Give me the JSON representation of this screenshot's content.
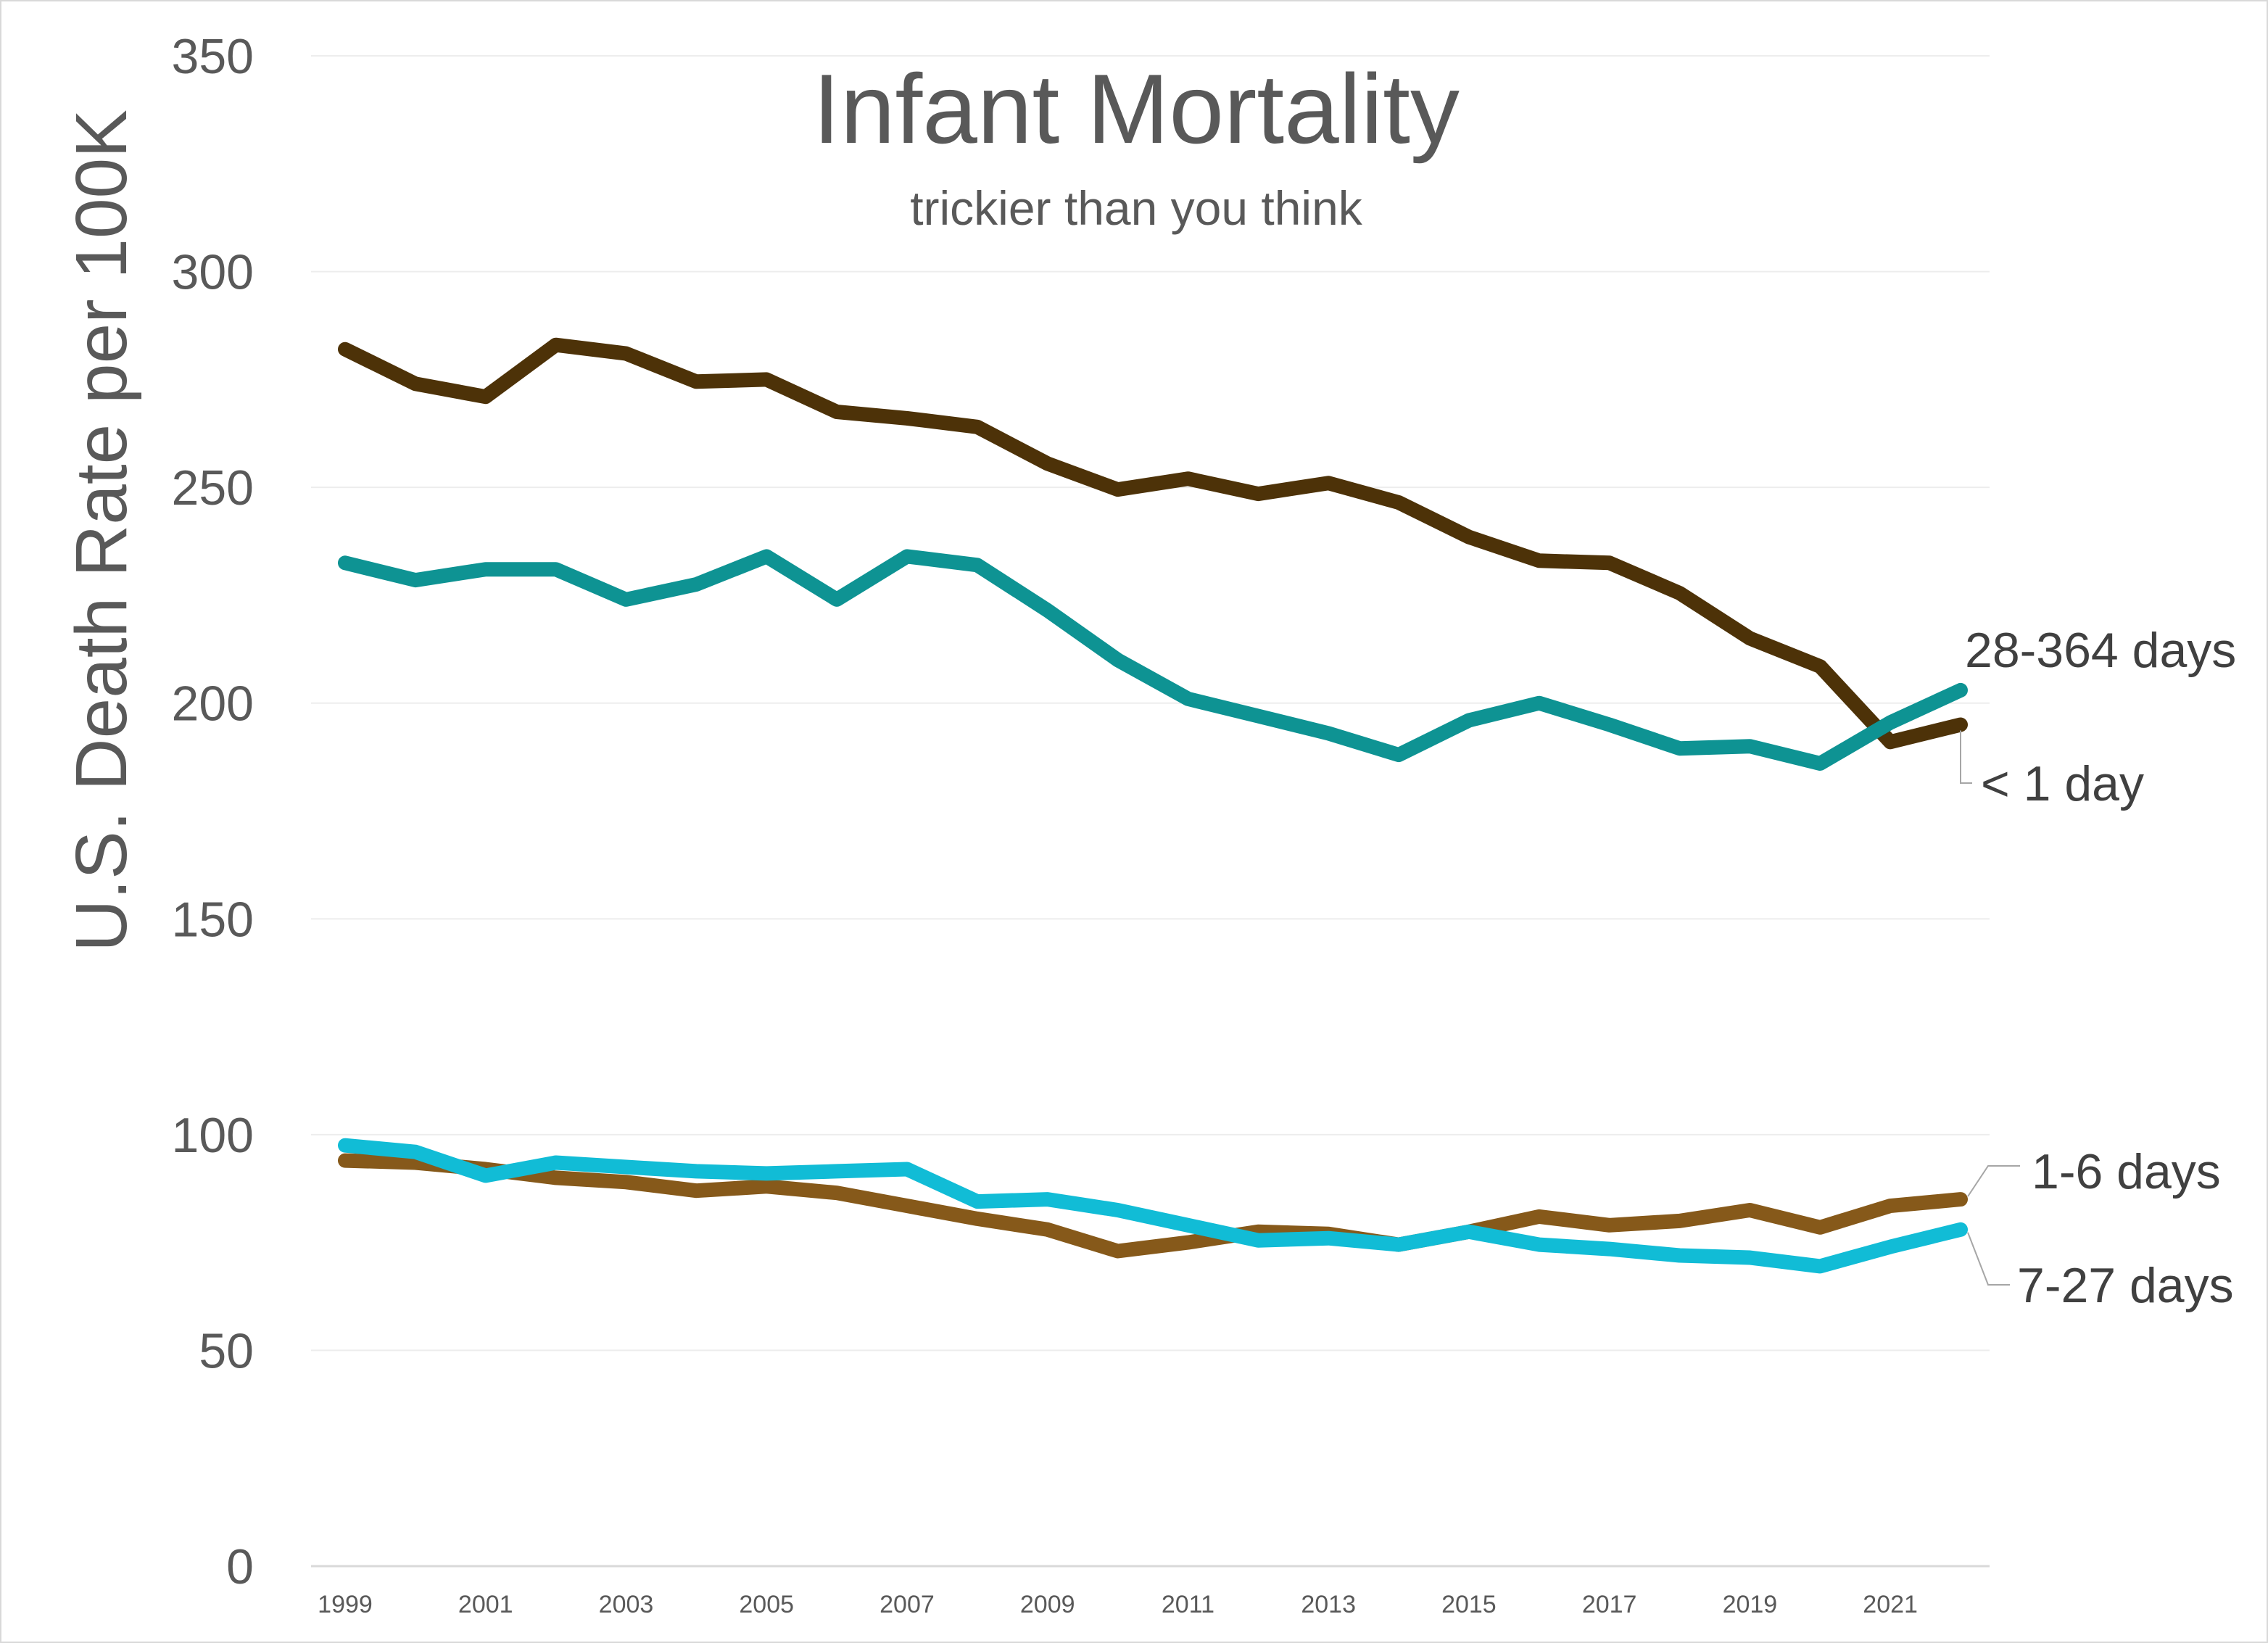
{
  "chart_data": {
    "type": "line",
    "title": "Infant Mortality",
    "subtitle": "trickier than you think",
    "ylabel": "U.S. Death Rate per 100K",
    "xlabel": "",
    "ylim": [
      0,
      350
    ],
    "yticks": [
      0,
      50,
      100,
      150,
      200,
      250,
      300,
      350
    ],
    "xticks": [
      1999,
      2001,
      2003,
      2005,
      2007,
      2009,
      2011,
      2013,
      2015,
      2017,
      2019,
      2021
    ],
    "grid": true,
    "legend": "direct labels at line ends",
    "x": [
      1999,
      2000,
      2001,
      2002,
      2003,
      2004,
      2005,
      2006,
      2007,
      2008,
      2009,
      2010,
      2011,
      2012,
      2013,
      2014,
      2015,
      2016,
      2017,
      2018,
      2019,
      2020,
      2021,
      2022
    ],
    "series": [
      {
        "name": "< 1 day",
        "color": "#4d3208",
        "values": [
          282,
          274,
          271,
          283,
          281,
          274.5,
          275,
          267.5,
          266,
          264,
          255.5,
          249.5,
          252,
          248.5,
          251,
          246.5,
          238.5,
          233,
          232.5,
          225.5,
          215,
          208.5,
          191,
          195
        ]
      },
      {
        "name": "28-364 days",
        "color": "#0e9393",
        "values": [
          232.5,
          228.5,
          231,
          231,
          224,
          227.5,
          234,
          224,
          234,
          232,
          221.5,
          210,
          201,
          197,
          193,
          188,
          196,
          200,
          195,
          189.5,
          190,
          186,
          195.5,
          203
        ]
      },
      {
        "name": "1-6 days",
        "color": "#86591a",
        "values": [
          94,
          93.5,
          92,
          90,
          89,
          87,
          88,
          86.5,
          83.5,
          80.5,
          78,
          73,
          75,
          77.5,
          77,
          74.5,
          77.5,
          81,
          79,
          80,
          82.5,
          78.5,
          83.5,
          85
        ]
      },
      {
        "name": "7-27 days",
        "color": "#11bcd6",
        "values": [
          97.5,
          96,
          90.5,
          93.5,
          92.5,
          91.5,
          91,
          91.5,
          92,
          84.5,
          85,
          82.5,
          79,
          75.5,
          76,
          74.5,
          77.5,
          74.5,
          73.5,
          72,
          71.5,
          69.5,
          74,
          78
        ]
      }
    ]
  }
}
